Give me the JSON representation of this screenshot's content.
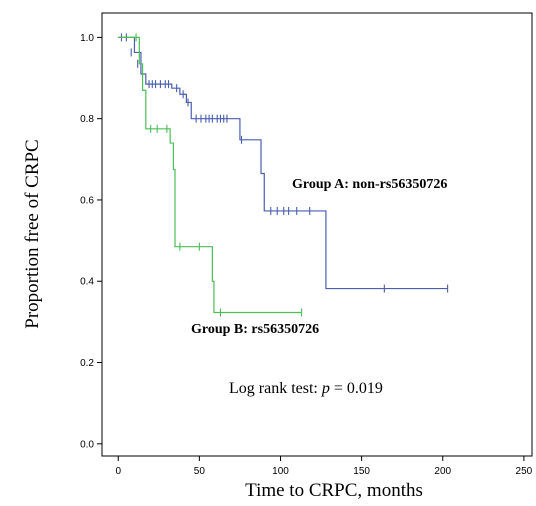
{
  "chart_data": {
    "type": "line",
    "subtype": "kaplan-meier-step",
    "xlabel": "Time to CRPC, months",
    "ylabel": "Proportion free of CRPC",
    "xlim": [
      -10,
      255
    ],
    "ylim": [
      -0.03,
      1.06
    ],
    "x_ticks": [
      0,
      50,
      100,
      150,
      200,
      250
    ],
    "y_ticks": [
      0.0,
      0.2,
      0.4,
      0.6,
      0.8,
      1.0
    ],
    "y_tick_labels": [
      "0.0",
      "0.2",
      "0.4",
      "0.6",
      "0.8",
      "1.0"
    ],
    "grid": false,
    "legend": "none",
    "series": [
      {
        "label_text": "Group A: non-rs56350726",
        "color": "#4a5fb0",
        "steps": [
          [
            0,
            1.0
          ],
          [
            10,
            0.963
          ],
          [
            14,
            0.91
          ],
          [
            17,
            0.885
          ],
          [
            33,
            0.875
          ],
          [
            38,
            0.86
          ],
          [
            42,
            0.84
          ],
          [
            45,
            0.8
          ],
          [
            75,
            0.748
          ],
          [
            88,
            0.665
          ],
          [
            90,
            0.573
          ],
          [
            128,
            0.382
          ],
          [
            203,
            0.382
          ]
        ],
        "censored": [
          [
            2,
            1.0
          ],
          [
            5,
            1.0
          ],
          [
            8,
            0.963
          ],
          [
            12,
            0.935
          ],
          [
            19,
            0.885
          ],
          [
            21,
            0.885
          ],
          [
            23,
            0.885
          ],
          [
            26,
            0.885
          ],
          [
            29,
            0.885
          ],
          [
            31,
            0.885
          ],
          [
            36,
            0.875
          ],
          [
            40,
            0.86
          ],
          [
            43,
            0.84
          ],
          [
            48,
            0.8
          ],
          [
            51,
            0.8
          ],
          [
            54,
            0.8
          ],
          [
            56,
            0.8
          ],
          [
            58,
            0.8
          ],
          [
            61,
            0.8
          ],
          [
            63,
            0.8
          ],
          [
            65,
            0.8
          ],
          [
            67,
            0.8
          ],
          [
            76,
            0.748
          ],
          [
            94,
            0.573
          ],
          [
            98,
            0.573
          ],
          [
            102,
            0.573
          ],
          [
            105,
            0.573
          ],
          [
            110,
            0.573
          ],
          [
            118,
            0.573
          ],
          [
            164,
            0.382
          ],
          [
            203,
            0.382
          ]
        ]
      },
      {
        "label_text": "Group B: rs56350726",
        "color": "#4cbf57",
        "steps": [
          [
            0,
            1.0
          ],
          [
            13,
            0.935
          ],
          [
            15,
            0.87
          ],
          [
            17,
            0.775
          ],
          [
            32,
            0.74
          ],
          [
            34,
            0.675
          ],
          [
            35,
            0.485
          ],
          [
            58,
            0.4
          ],
          [
            59,
            0.323
          ],
          [
            113,
            0.323
          ]
        ],
        "censored": [
          [
            11,
            1.0
          ],
          [
            20,
            0.775
          ],
          [
            24,
            0.775
          ],
          [
            30,
            0.775
          ],
          [
            38,
            0.485
          ],
          [
            50,
            0.485
          ],
          [
            63,
            0.323
          ],
          [
            113,
            0.323
          ]
        ]
      }
    ],
    "annotations": [
      {
        "id": "group-a-label",
        "text": "Group A: non-rs56350726"
      },
      {
        "id": "group-b-label",
        "text": "Group B: rs56350726"
      },
      {
        "id": "logrank-prefix",
        "text": "Log rank test: "
      },
      {
        "id": "logrank-p",
        "text": "p"
      },
      {
        "id": "logrank-value",
        "text": " = 0.019"
      }
    ]
  }
}
